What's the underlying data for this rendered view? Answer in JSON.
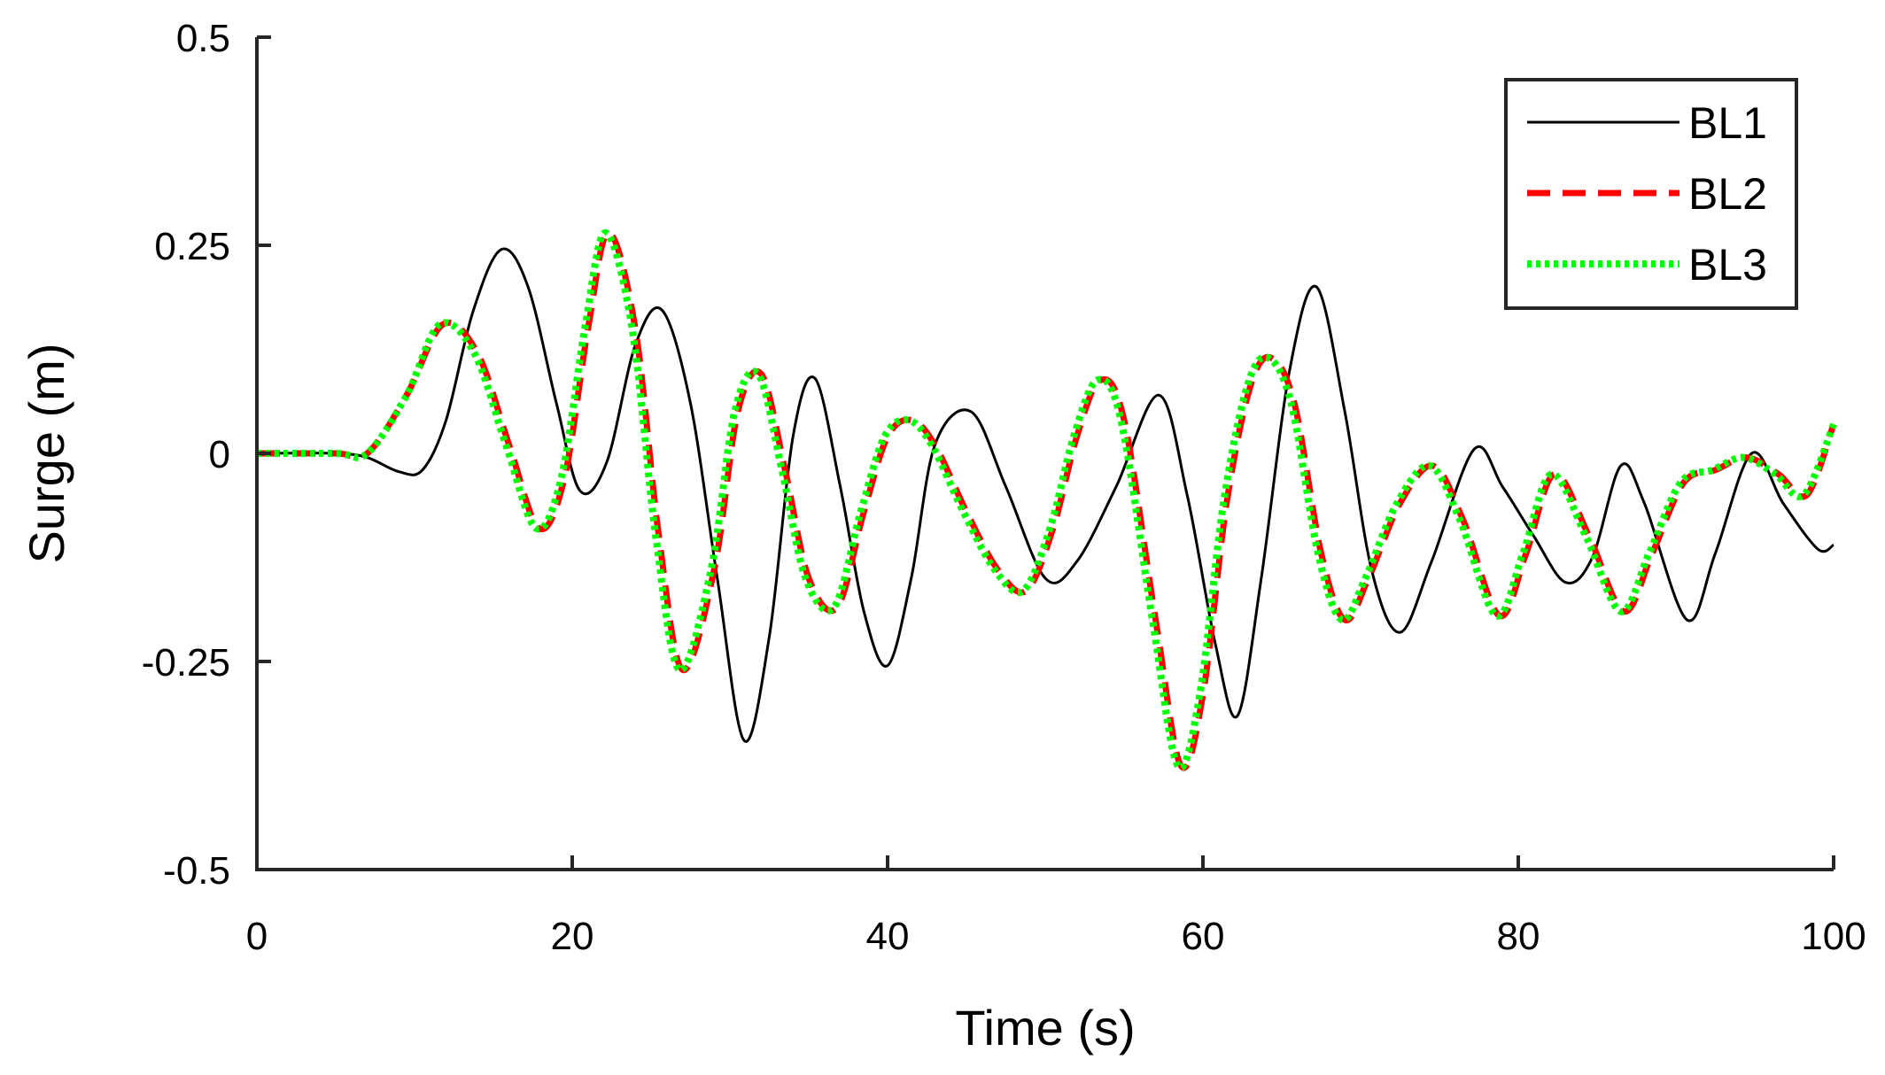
{
  "chart_data": {
    "type": "line",
    "xlabel": "Time (s)",
    "ylabel": "Surge (m)",
    "xlim": [
      0,
      100
    ],
    "ylim": [
      -0.5,
      0.5
    ],
    "xticks": [
      0,
      20,
      40,
      60,
      80,
      100
    ],
    "xtick_labels": [
      "0",
      "20",
      "40",
      "60",
      "80",
      "100"
    ],
    "yticks": [
      -0.5,
      -0.25,
      0,
      0.25,
      0.5
    ],
    "ytick_labels": [
      "-0.5",
      "-0.25",
      "0",
      "0.25",
      "0.5"
    ],
    "grid": false,
    "legend_position": "top-right",
    "series": [
      {
        "name": "BL1",
        "color": "#000000",
        "style": "solid",
        "x": [
          0,
          5,
          7,
          9,
          10.5,
          12,
          13.7,
          15.5,
          17.2,
          19,
          20.5,
          22.2,
          24,
          25.7,
          27.5,
          29.2,
          30.9,
          32.5,
          34,
          35.4,
          37,
          38.5,
          40,
          41.5,
          43,
          45.3,
          47.5,
          50,
          52,
          54.5,
          57.2,
          59,
          60.8,
          62.2,
          63.7,
          65.5,
          67.2,
          69,
          70.7,
          72.5,
          74.5,
          77.2,
          79,
          81,
          83,
          84.7,
          86.5,
          88,
          90.7,
          92.5,
          94.8,
          96.8,
          99,
          100
        ],
        "y": [
          0,
          0,
          -0.005,
          -0.022,
          -0.02,
          0.04,
          0.17,
          0.245,
          0.2,
          0.06,
          -0.045,
          -0.01,
          0.13,
          0.172,
          0.06,
          -0.15,
          -0.345,
          -0.22,
          0.02,
          0.09,
          -0.04,
          -0.19,
          -0.255,
          -0.15,
          0.01,
          0.05,
          -0.04,
          -0.15,
          -0.13,
          -0.04,
          0.07,
          -0.05,
          -0.23,
          -0.315,
          -0.15,
          0.1,
          0.2,
          0.05,
          -0.14,
          -0.215,
          -0.13,
          0.005,
          -0.04,
          -0.1,
          -0.155,
          -0.125,
          -0.015,
          -0.06,
          -0.2,
          -0.12,
          0,
          -0.06,
          -0.115,
          -0.11
        ]
      },
      {
        "name": "BL2",
        "color": "#ff0000",
        "style": "dashed",
        "x": [
          0,
          5,
          7,
          9.5,
          11.8,
          14,
          16,
          17.9,
          19.5,
          21,
          22.3,
          24,
          25.5,
          27,
          29,
          30.5,
          32,
          33.5,
          35,
          36.8,
          38.5,
          40,
          41.5,
          43,
          45,
          47,
          48.8,
          50.5,
          52,
          53.5,
          55,
          57,
          58.6,
          60,
          61.5,
          63,
          64.3,
          65.8,
          67.5,
          69,
          70.5,
          72.5,
          74.6,
          76.5,
          78.8,
          80.5,
          82.3,
          84.5,
          86.7,
          88.5,
          90.5,
          92.5,
          94.5,
          96.5,
          98.3,
          100
        ],
        "y": [
          0,
          0,
          0,
          0.07,
          0.155,
          0.12,
          0.01,
          -0.09,
          -0.03,
          0.15,
          0.265,
          0.15,
          -0.1,
          -0.26,
          -0.14,
          0.05,
          0.095,
          -0.02,
          -0.15,
          -0.185,
          -0.07,
          0.02,
          0.04,
          0.01,
          -0.07,
          -0.14,
          -0.165,
          -0.09,
          0.02,
          0.088,
          0.04,
          -0.2,
          -0.375,
          -0.29,
          -0.06,
          0.08,
          0.115,
          0.06,
          -0.12,
          -0.2,
          -0.15,
          -0.06,
          -0.015,
          -0.08,
          -0.195,
          -0.12,
          -0.025,
          -0.1,
          -0.19,
          -0.12,
          -0.035,
          -0.02,
          -0.005,
          -0.025,
          -0.05,
          0.035
        ]
      },
      {
        "name": "BL3",
        "color": "#00ff00",
        "style": "dotted",
        "x": [
          0,
          5,
          7,
          9.5,
          11.6,
          13.8,
          15.8,
          17.7,
          19.3,
          20.8,
          22.1,
          23.8,
          25.3,
          26.8,
          28.8,
          30.3,
          31.8,
          33.3,
          34.8,
          36.6,
          38.3,
          39.8,
          41.3,
          42.8,
          44.8,
          46.8,
          48.6,
          50.3,
          51.8,
          53.3,
          54.8,
          56.8,
          58.4,
          59.8,
          61.3,
          62.8,
          64.1,
          65.6,
          67.3,
          68.8,
          70.3,
          72.3,
          74.4,
          76.3,
          78.6,
          80.3,
          82.1,
          84.3,
          86.5,
          88.3,
          90.3,
          92.3,
          94.3,
          96.3,
          98.1,
          100
        ],
        "y": [
          0,
          0,
          0,
          0.07,
          0.155,
          0.12,
          0.01,
          -0.09,
          -0.03,
          0.15,
          0.265,
          0.15,
          -0.1,
          -0.26,
          -0.14,
          0.05,
          0.095,
          -0.02,
          -0.15,
          -0.185,
          -0.07,
          0.02,
          0.04,
          0.01,
          -0.07,
          -0.14,
          -0.165,
          -0.09,
          0.02,
          0.088,
          0.04,
          -0.2,
          -0.375,
          -0.29,
          -0.06,
          0.08,
          0.115,
          0.06,
          -0.12,
          -0.2,
          -0.15,
          -0.06,
          -0.015,
          -0.08,
          -0.195,
          -0.12,
          -0.025,
          -0.1,
          -0.19,
          -0.12,
          -0.035,
          -0.02,
          -0.005,
          -0.025,
          -0.05,
          0.035
        ]
      }
    ]
  }
}
